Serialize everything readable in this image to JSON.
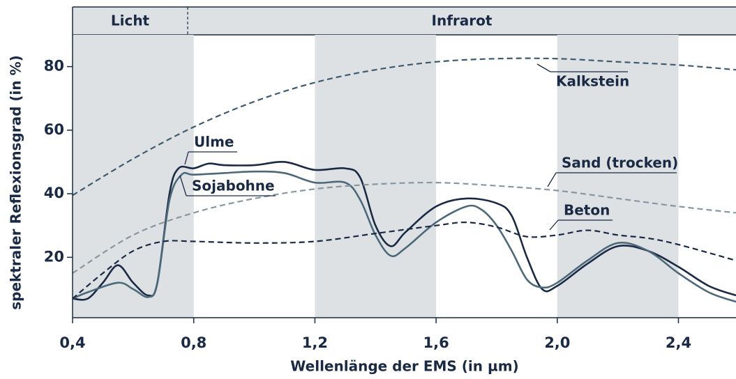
{
  "chart_data": {
    "type": "line",
    "xlabel": "Wellenlänge der EMS (in µm)",
    "ylabel": "spektraler Reflexionsgrad (in %)",
    "xlim": [
      0.4,
      2.59
    ],
    "ylim": [
      1,
      90
    ],
    "xticks": [
      {
        "value": 0.4,
        "label": "0,4"
      },
      {
        "value": 0.8,
        "label": "0,8"
      },
      {
        "value": 1.2,
        "label": "1,2"
      },
      {
        "value": 1.6,
        "label": "1,6"
      },
      {
        "value": 2.0,
        "label": "2,0"
      },
      {
        "value": 2.4,
        "label": "2,4"
      }
    ],
    "yticks": [
      20,
      40,
      60,
      80
    ],
    "bands": [
      {
        "label": "Licht",
        "range": [
          0.4,
          0.78
        ]
      },
      {
        "label": "Infrarot",
        "range": [
          0.78,
          2.59
        ]
      }
    ],
    "shaded_ranges": [
      [
        0.4,
        0.8
      ],
      [
        1.2,
        1.6
      ],
      [
        2.0,
        2.4
      ]
    ],
    "series": [
      {
        "name": "Kalkstein",
        "color": "#3d5a6e",
        "dashed": true,
        "x": [
          0.4,
          0.6,
          0.8,
          1.0,
          1.2,
          1.4,
          1.6,
          1.8,
          2.0,
          2.2,
          2.4,
          2.59
        ],
        "values": [
          39.5,
          51,
          61,
          69,
          75,
          79,
          81.5,
          82.5,
          82.5,
          81.5,
          80.5,
          79
        ]
      },
      {
        "name": "Ulme",
        "color": "#1a2a44",
        "dashed": false,
        "x": [
          0.4,
          0.45,
          0.5,
          0.55,
          0.6,
          0.65,
          0.68,
          0.72,
          0.75,
          0.8,
          0.85,
          0.9,
          1.0,
          1.1,
          1.2,
          1.3,
          1.35,
          1.4,
          1.45,
          1.5,
          1.6,
          1.7,
          1.8,
          1.85,
          1.9,
          1.95,
          2.0,
          2.1,
          2.2,
          2.3,
          2.4,
          2.5,
          2.59
        ],
        "values": [
          7,
          7,
          12,
          17.5,
          12,
          8,
          12,
          40,
          48,
          48,
          49.5,
          49,
          49,
          50,
          47.5,
          48,
          45,
          30,
          23.5,
          28,
          36,
          38.5,
          37,
          33,
          20,
          10,
          11,
          18,
          23.5,
          22,
          17,
          11,
          8
        ]
      },
      {
        "name": "Sojabohne",
        "color": "#4d6878",
        "dashed": false,
        "x": [
          0.4,
          0.45,
          0.55,
          0.6,
          0.65,
          0.68,
          0.72,
          0.76,
          0.8,
          0.9,
          1.0,
          1.1,
          1.2,
          1.3,
          1.35,
          1.4,
          1.45,
          1.5,
          1.6,
          1.7,
          1.75,
          1.8,
          1.85,
          1.9,
          1.95,
          2.0,
          2.1,
          2.2,
          2.3,
          2.4,
          2.5,
          2.59
        ],
        "values": [
          7,
          9,
          12,
          10,
          7.5,
          12,
          38,
          46,
          46,
          46.5,
          47,
          46.5,
          43.5,
          43.5,
          38,
          27,
          20.5,
          23,
          31,
          36,
          35,
          30,
          22,
          13,
          10.5,
          12,
          19,
          24.5,
          22,
          15,
          9,
          6
        ]
      },
      {
        "name": "Sand (trocken)",
        "color": "#8896a0",
        "dashed": true,
        "x": [
          0.4,
          0.6,
          0.8,
          1.0,
          1.2,
          1.4,
          1.6,
          1.8,
          2.0,
          2.2,
          2.4,
          2.59
        ],
        "values": [
          15,
          27,
          34,
          38.5,
          41.5,
          43,
          43.5,
          42.5,
          41,
          38.5,
          36,
          34
        ]
      },
      {
        "name": "Beton",
        "color": "#1a2a44",
        "dashed": true,
        "x": [
          0.4,
          0.5,
          0.6,
          0.7,
          0.8,
          1.0,
          1.2,
          1.4,
          1.6,
          1.7,
          1.8,
          1.9,
          2.0,
          2.1,
          2.2,
          2.3,
          2.4,
          2.59
        ],
        "values": [
          7,
          15,
          22,
          25,
          25,
          24.5,
          25,
          27.5,
          30,
          31,
          29.5,
          26.5,
          27,
          28.5,
          27,
          26,
          24,
          19
        ]
      }
    ]
  }
}
